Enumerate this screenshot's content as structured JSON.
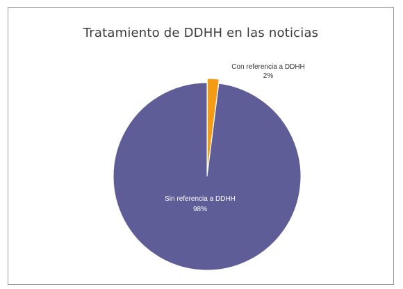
{
  "chart_data": {
    "type": "pie",
    "title": "Tratamiento de DDHH en las noticias",
    "slices": [
      {
        "label": "Con referencia a DDHH",
        "value": 2,
        "value_label": "2%",
        "color": "#f59a15"
      },
      {
        "label": "Sin referencia a DDHH",
        "value": 98,
        "value_label": "98%",
        "color": "#5f5d98"
      }
    ]
  }
}
